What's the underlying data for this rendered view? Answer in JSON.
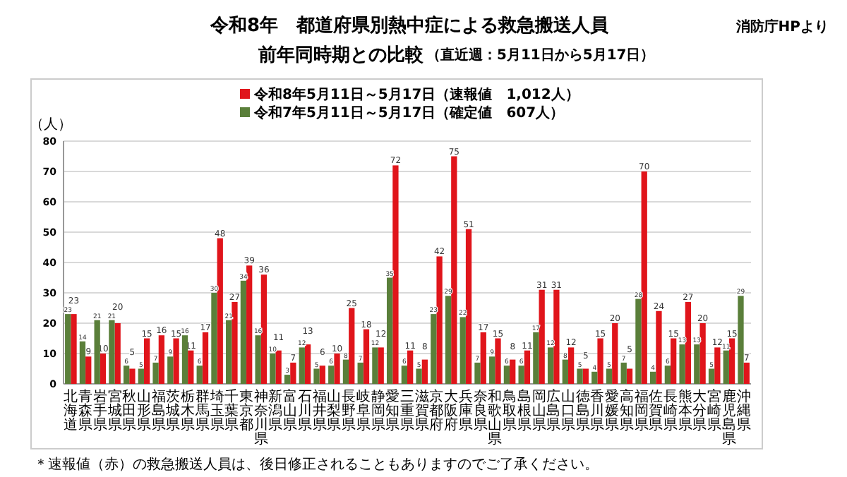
{
  "chart_data": {
    "type": "bar",
    "title": "令和8年　都道府県別熱中症による救急搬送人員",
    "subtitle": "前年同時期との比較",
    "annotations": [
      "（直近週：5月11日から5月17日）",
      "消防庁HPより",
      "＊速報値（赤）の救急搬送人員は、後日修正されることもありますのでご了承ください。"
    ],
    "ylabel": "（人）",
    "categories": [
      "北海道",
      "青森県",
      "岩手県",
      "宮城県",
      "秋田県",
      "山形県",
      "福島県",
      "茨城県",
      "栃木県",
      "群馬県",
      "埼玉県",
      "千葉県",
      "東京都",
      "神奈川県",
      "新潟県",
      "富山県",
      "石川県",
      "福井県",
      "山梨県",
      "長野県",
      "岐阜県",
      "静岡県",
      "愛知県",
      "三重県",
      "滋賀県",
      "京都府",
      "大阪府",
      "兵庫県",
      "奈良県",
      "和歌山県",
      "鳥取県",
      "島根県",
      "岡山県",
      "広島県",
      "山口県",
      "徳島県",
      "香川県",
      "愛媛県",
      "高知県",
      "福岡県",
      "佐賀県",
      "長崎県",
      "熊本県",
      "大分県",
      "宮崎県",
      "鹿児島県",
      "沖縄県"
    ],
    "series": [
      {
        "name": "令和8年5月11日～5月17日（速報値　1,012人）",
        "color": "#e0151b",
        "values": [
          23,
          9,
          10,
          20,
          5,
          15,
          16,
          15,
          11,
          17,
          48,
          27,
          39,
          36,
          11,
          7,
          13,
          6,
          10,
          25,
          18,
          12,
          72,
          11,
          8,
          42,
          75,
          51,
          17,
          15,
          8,
          11,
          31,
          31,
          12,
          5,
          15,
          20,
          5,
          70,
          24,
          15,
          27,
          20,
          12,
          15,
          7
        ]
      },
      {
        "name": "令和7年5月11日～5月17日（確定値　607人）",
        "color": "#5a7f3a",
        "values": [
          23,
          14,
          21,
          21,
          6,
          5,
          7,
          9,
          16,
          6,
          30,
          21,
          34,
          16,
          10,
          3,
          12,
          5,
          6,
          8,
          7,
          12,
          35,
          6,
          5,
          23,
          29,
          22,
          7,
          9,
          6,
          6,
          17,
          12,
          8,
          5,
          4,
          5,
          7,
          28,
          4,
          6,
          13,
          13,
          5,
          11,
          29
        ]
      }
    ],
    "ylim": [
      0,
      80
    ],
    "yticks": [
      0,
      10,
      20,
      30,
      40,
      50,
      60,
      70,
      80
    ],
    "grid": "y",
    "legend": "top",
    "data_labels": true
  }
}
